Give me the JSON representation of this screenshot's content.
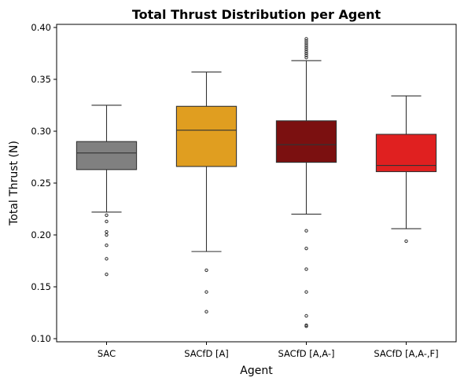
{
  "chart_data": {
    "type": "box",
    "title": "Total Thrust Distribution per Agent",
    "xlabel": "Agent",
    "ylabel": "Total Thrust (N)",
    "ylim": [
      0.097,
      0.403
    ],
    "yticks": [
      0.1,
      0.15,
      0.2,
      0.25,
      0.3,
      0.35,
      0.4
    ],
    "ytick_labels": [
      "0.10",
      "0.15",
      "0.20",
      "0.25",
      "0.30",
      "0.35",
      "0.40"
    ],
    "grid": false,
    "legend": "none",
    "categories": [
      "SAC",
      "SACfD [A]",
      "SACfD [A,A-]",
      "SACfD [A,A-,F]"
    ],
    "series": [
      {
        "color": "#808080",
        "whisker_low": 0.222,
        "q1": 0.263,
        "median": 0.279,
        "q3": 0.29,
        "whisker_high": 0.325,
        "outliers": [
          0.219,
          0.213,
          0.203,
          0.2,
          0.19,
          0.177,
          0.162
        ]
      },
      {
        "color": "#E09E20",
        "whisker_low": 0.184,
        "q1": 0.266,
        "median": 0.301,
        "q3": 0.324,
        "whisker_high": 0.357,
        "outliers": [
          0.166,
          0.145,
          0.126
        ]
      },
      {
        "color": "#7B1010",
        "whisker_low": 0.22,
        "q1": 0.27,
        "median": 0.287,
        "q3": 0.31,
        "whisker_high": 0.368,
        "outliers": [
          0.371,
          0.373,
          0.375,
          0.377,
          0.379,
          0.381,
          0.383,
          0.385,
          0.387,
          0.389,
          0.204,
          0.187,
          0.167,
          0.145,
          0.122,
          0.113,
          0.112
        ]
      },
      {
        "color": "#E02020",
        "whisker_low": 0.206,
        "q1": 0.261,
        "median": 0.267,
        "q3": 0.297,
        "whisker_high": 0.334,
        "outliers": [
          0.194
        ]
      }
    ]
  }
}
